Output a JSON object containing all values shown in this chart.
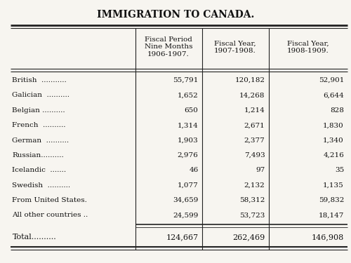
{
  "title": "IMMIGRATION TO CANADA.",
  "col_headers": [
    "Fiscal Period\nNine Months\n1906-1907.",
    "Fiscal Year,\n1907-1908.",
    "Fiscal Year,\n1908-1909."
  ],
  "rows": [
    [
      "British  ..........",
      "55,791",
      "120,182",
      "52,901"
    ],
    [
      "Galician  ..........",
      "1,652",
      "14,268",
      "6,644"
    ],
    [
      "Belgian ..........",
      "650",
      "1,214",
      "828"
    ],
    [
      "French  ..........",
      "1,314",
      "2,671",
      "1,830"
    ],
    [
      "German  ..........",
      "1,903",
      "2,377",
      "1,340"
    ],
    [
      "Russian..........",
      "2,976",
      "7,493",
      "4,216"
    ],
    [
      "Icelandic  .......",
      "46",
      "97",
      "35"
    ],
    [
      "Swedish  ..........",
      "1,077",
      "2,132",
      "1,135"
    ],
    [
      "From United States.",
      "34,659",
      "58,312",
      "59,832"
    ],
    [
      "All other countries ..",
      "24,599",
      "53,723",
      "18,147"
    ]
  ],
  "row_labels": [
    "British  ...........",
    "Galician  ..........",
    "Belgian ..........",
    "French  ..........",
    "German  ..........",
    "Russian..........",
    "Icelandic  .......",
    "Swedish  ..........",
    "From United States.",
    "All other countries .."
  ],
  "total_label": "Total..........",
  "total_vals": [
    "124,667",
    "262,469",
    "146,908"
  ],
  "bg_color": "#f7f5f0",
  "text_color": "#111111",
  "line_color": "#222222"
}
